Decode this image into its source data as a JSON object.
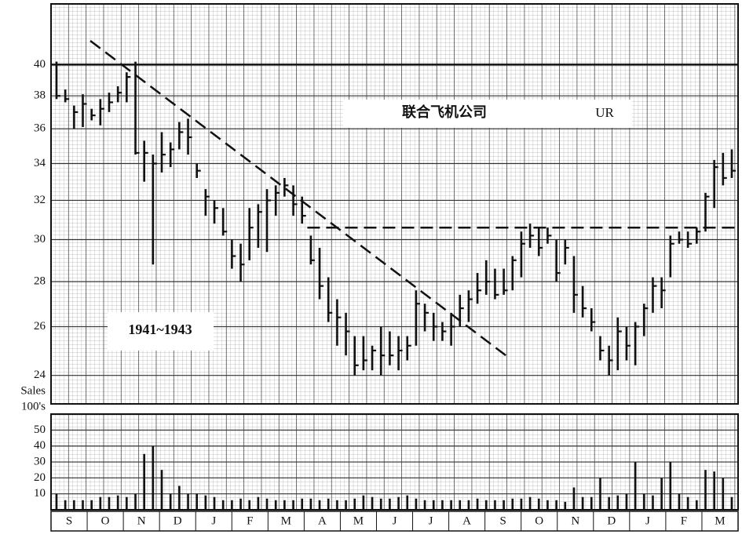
{
  "chart_data": [
    {
      "type": "ohlc",
      "title": "联合飞机公司",
      "subtitle": "UR",
      "annotation": "1941~1943",
      "high": [
        40.2,
        38.4,
        37.4,
        38.1,
        37.2,
        37.8,
        38.2,
        38.6,
        39.5,
        40.2,
        35.3,
        34.5,
        35.8,
        35.2,
        36.4,
        36.6,
        34.0,
        32.6,
        32.0,
        31.6,
        30.0,
        29.8,
        31.6,
        31.8,
        32.6,
        32.8,
        33.2,
        32.8,
        32.2,
        30.2,
        29.6,
        28.2,
        27.2,
        26.6,
        25.6,
        25.6,
        25.2,
        26.0,
        25.8,
        25.6,
        25.6,
        27.6,
        27.0,
        26.6,
        26.2,
        26.6,
        27.4,
        27.6,
        28.4,
        29.0,
        28.6,
        28.6,
        29.2,
        30.4,
        30.8,
        30.6,
        30.6,
        30.0,
        30.0,
        29.2,
        27.8,
        26.8,
        25.6,
        25.2,
        26.4,
        26.0,
        26.2,
        27.0,
        28.2,
        28.2,
        30.2,
        30.4,
        30.4,
        30.6,
        32.4,
        34.2,
        34.6,
        34.8
      ],
      "low": [
        37.8,
        37.6,
        36.0,
        36.1,
        36.5,
        36.2,
        37.0,
        37.6,
        37.6,
        34.5,
        33.0,
        28.8,
        33.5,
        33.8,
        34.8,
        34.5,
        33.2,
        31.2,
        30.8,
        30.2,
        28.6,
        28.0,
        29.0,
        29.6,
        29.4,
        31.2,
        32.2,
        31.2,
        30.8,
        28.8,
        27.2,
        26.2,
        25.2,
        24.8,
        24.0,
        24.2,
        24.2,
        24.0,
        24.4,
        24.2,
        24.6,
        25.2,
        25.8,
        25.4,
        25.4,
        25.2,
        26.0,
        26.2,
        27.0,
        27.4,
        27.2,
        27.4,
        27.6,
        28.2,
        29.6,
        29.2,
        29.8,
        28.0,
        28.8,
        26.6,
        26.4,
        25.8,
        24.6,
        24.0,
        24.2,
        24.6,
        24.4,
        25.6,
        26.6,
        26.8,
        28.2,
        29.8,
        29.6,
        29.8,
        30.4,
        31.6,
        32.8,
        33.2
      ],
      "close": [
        38.0,
        37.8,
        37.0,
        37.5,
        36.8,
        37.2,
        37.6,
        38.2,
        39.2,
        34.6,
        34.6,
        34.0,
        34.5,
        34.8,
        35.8,
        35.5,
        33.6,
        32.2,
        31.6,
        30.4,
        29.2,
        28.8,
        30.6,
        31.4,
        32.0,
        32.4,
        32.8,
        31.8,
        31.2,
        29.0,
        27.8,
        26.6,
        26.4,
        25.8,
        24.4,
        24.6,
        25.0,
        24.8,
        24.8,
        25.0,
        25.2,
        27.0,
        26.6,
        26.0,
        25.8,
        26.0,
        26.8,
        27.2,
        27.6,
        28.0,
        27.4,
        27.6,
        29.0,
        29.8,
        30.2,
        29.6,
        30.2,
        28.4,
        29.6,
        27.4,
        26.8,
        26.2,
        25.0,
        24.6,
        25.8,
        25.2,
        26.0,
        26.8,
        27.8,
        27.6,
        29.8,
        30.0,
        29.8,
        30.4,
        32.2,
        33.8,
        33.2,
        33.6
      ],
      "color": "#111111",
      "ylim": [
        22.9,
        44.2
      ],
      "yticks": [
        24,
        26,
        28,
        30,
        32,
        34,
        36,
        38,
        40
      ],
      "log_scale": true,
      "grid": true,
      "reference_lines": [
        {
          "style": "solid",
          "value": 40
        },
        {
          "style": "dashed",
          "points": [
            [
              3.85,
              41.6
            ],
            [
              51.6,
              24.7
            ]
          ]
        },
        {
          "style": "dashed",
          "points": [
            [
              28.6,
              30.6
            ],
            [
              77.3,
              30.6
            ]
          ]
        }
      ]
    },
    {
      "type": "bar",
      "ylabel": [
        "Sales",
        "100's"
      ],
      "values": [
        10,
        6,
        6,
        6,
        6,
        8,
        8,
        9,
        8,
        10,
        35,
        40,
        25,
        10,
        15,
        10,
        10,
        9,
        8,
        6,
        6,
        7,
        6,
        8,
        7,
        6,
        6,
        6,
        7,
        7,
        6,
        7,
        6,
        6,
        7,
        9,
        8,
        7,
        7,
        8,
        9,
        7,
        6,
        6,
        6,
        6,
        6,
        6,
        7,
        6,
        6,
        6,
        7,
        7,
        8,
        7,
        6,
        6,
        5,
        14,
        8,
        8,
        20,
        8,
        9,
        10,
        30,
        10,
        9,
        20,
        30,
        10,
        8,
        6,
        25,
        24,
        20,
        8
      ],
      "color": "#111111",
      "ylim": [
        0,
        60
      ],
      "yticks": [
        10,
        20,
        30,
        40,
        50
      ],
      "grid": true,
      "month_labels": [
        "S",
        "O",
        "N",
        "D",
        "J",
        "F",
        "M",
        "A",
        "M",
        "J",
        "J",
        "A",
        "S",
        "O",
        "N",
        "D",
        "J",
        "F",
        "M"
      ]
    }
  ]
}
